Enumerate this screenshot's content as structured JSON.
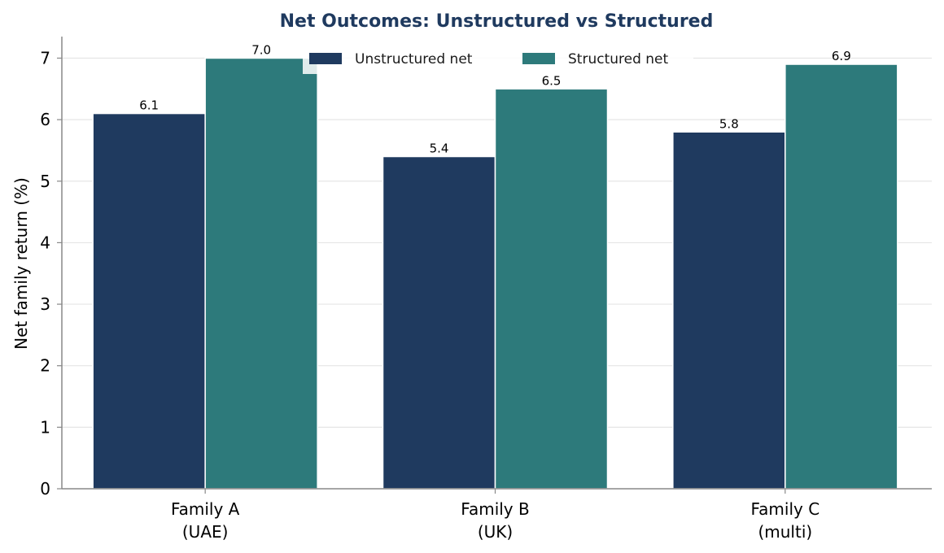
{
  "chart_data": {
    "type": "bar",
    "title": "Net Outcomes: Unstructured vs Structured",
    "xlabel": "",
    "ylabel": "Net family return (%)",
    "categories": [
      [
        "Family A",
        "(UAE)"
      ],
      [
        "Family B",
        "(UK)"
      ],
      [
        "Family C",
        "(multi)"
      ]
    ],
    "series": [
      {
        "name": "Unstructured net",
        "values": [
          6.1,
          5.4,
          5.8
        ],
        "labels": [
          "6.1",
          "5.4",
          "5.8"
        ],
        "color": "#1f3a5f"
      },
      {
        "name": "Structured net",
        "values": [
          7.0,
          6.5,
          6.9
        ],
        "labels": [
          "7.0",
          "6.5",
          "6.9"
        ],
        "color": "#2d7a7b"
      }
    ],
    "ylim": [
      0,
      7.35
    ],
    "yticks": [
      "0",
      "1",
      "2",
      "3",
      "4",
      "5",
      "6",
      "7"
    ],
    "grid": "horizontal",
    "legend_position": "top-center",
    "colors": {
      "title": "#1f3a5f",
      "grid": "#e6e6e6",
      "axis": "#888888"
    }
  }
}
